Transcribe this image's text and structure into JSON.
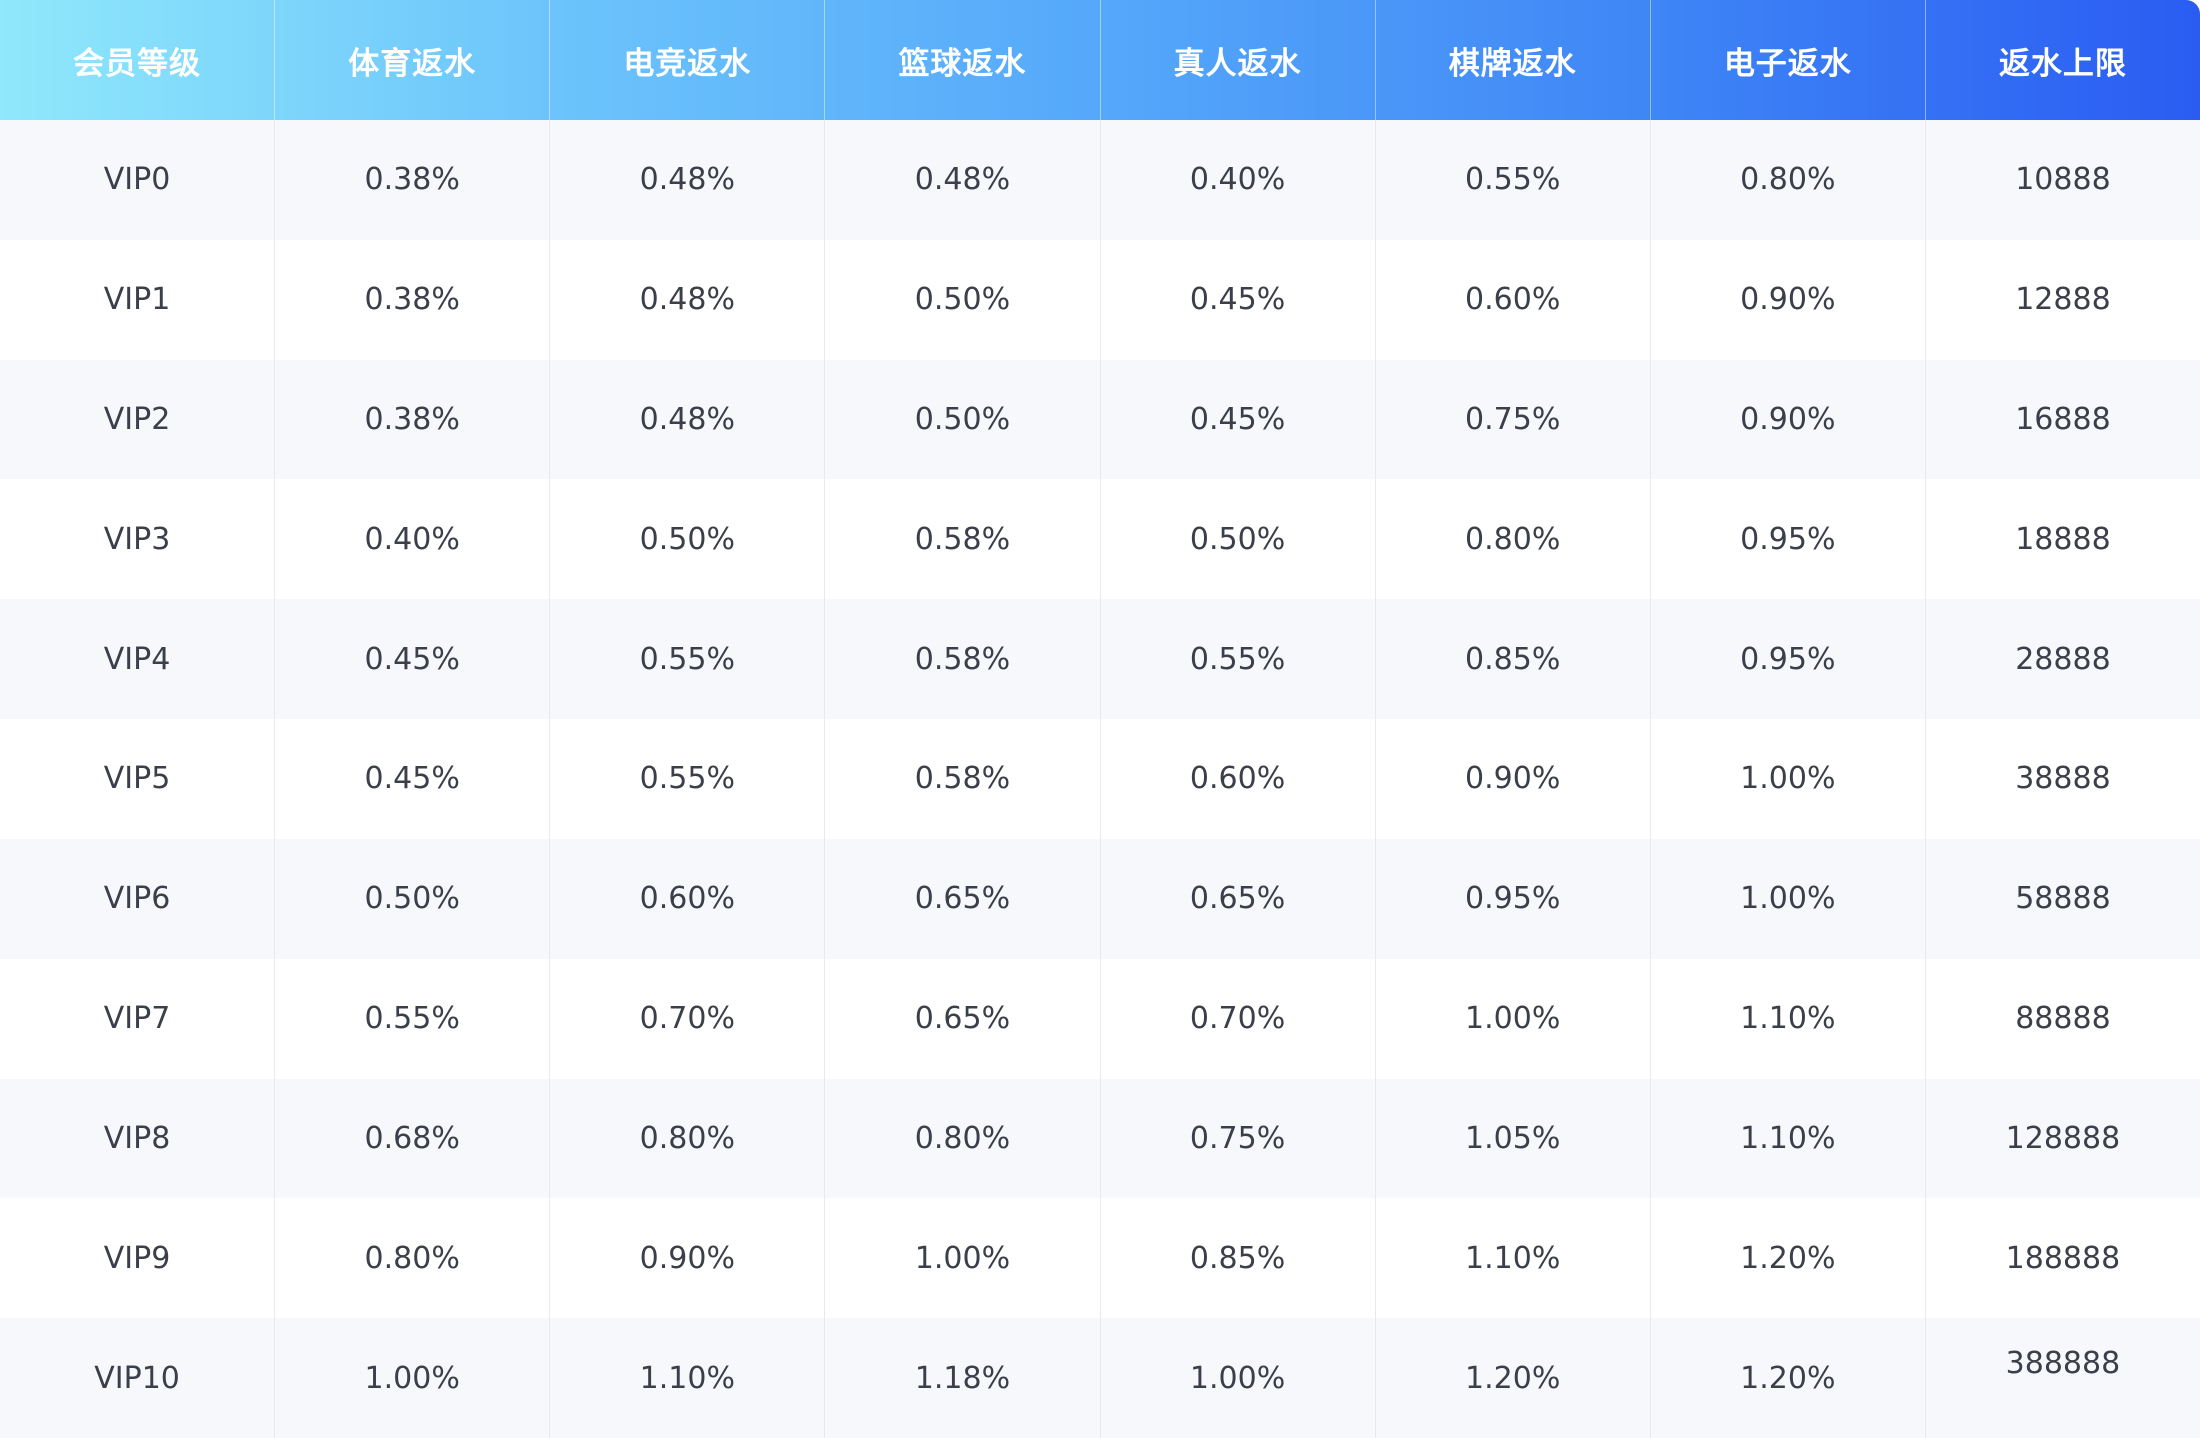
{
  "table": {
    "headers": [
      "会员等级",
      "体育返水",
      "电竞返水",
      "篮球返水",
      "真人返水",
      "棋牌返水",
      "电子返水",
      "返水上限"
    ],
    "rows": [
      [
        "VIP0",
        "0.38%",
        "0.48%",
        "0.48%",
        "0.40%",
        "0.55%",
        "0.80%",
        "10888"
      ],
      [
        "VIP1",
        "0.38%",
        "0.48%",
        "0.50%",
        "0.45%",
        "0.60%",
        "0.90%",
        "12888"
      ],
      [
        "VIP2",
        "0.38%",
        "0.48%",
        "0.50%",
        "0.45%",
        "0.75%",
        "0.90%",
        "16888"
      ],
      [
        "VIP3",
        "0.40%",
        "0.50%",
        "0.58%",
        "0.50%",
        "0.80%",
        "0.95%",
        "18888"
      ],
      [
        "VIP4",
        "0.45%",
        "0.55%",
        "0.58%",
        "0.55%",
        "0.85%",
        "0.95%",
        "28888"
      ],
      [
        "VIP5",
        "0.45%",
        "0.55%",
        "0.58%",
        "0.60%",
        "0.90%",
        "1.00%",
        "38888"
      ],
      [
        "VIP6",
        "0.50%",
        "0.60%",
        "0.65%",
        "0.65%",
        "0.95%",
        "1.00%",
        "58888"
      ],
      [
        "VIP7",
        "0.55%",
        "0.70%",
        "0.65%",
        "0.70%",
        "1.00%",
        "1.10%",
        "88888"
      ],
      [
        "VIP8",
        "0.68%",
        "0.80%",
        "0.80%",
        "0.75%",
        "1.05%",
        "1.10%",
        "128888"
      ],
      [
        "VIP9",
        "0.80%",
        "0.90%",
        "1.00%",
        "0.85%",
        "1.10%",
        "1.20%",
        "188888"
      ],
      [
        "VIP10",
        "1.00%",
        "1.10%",
        "1.18%",
        "1.00%",
        "1.20%",
        "1.20%",
        "388888"
      ]
    ]
  },
  "colors": {
    "header_gradient_start": "#8fe8fb",
    "header_gradient_end": "#2a5cf2",
    "row_alt": "#f6f8fc",
    "text": "#3b3f4a"
  }
}
